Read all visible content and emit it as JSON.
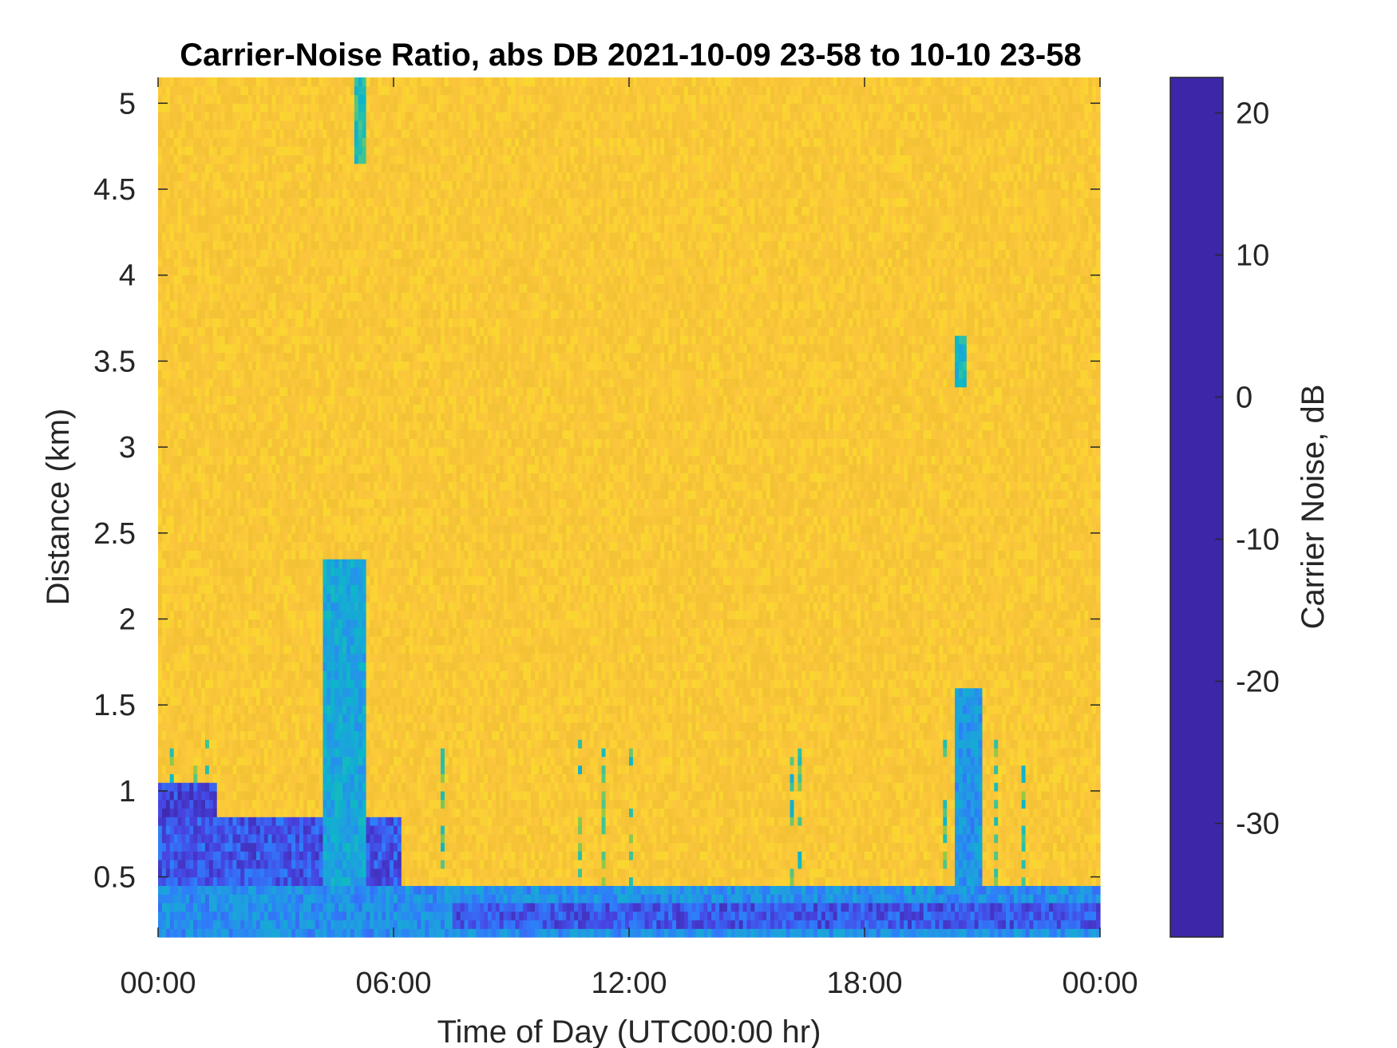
{
  "chart_data": {
    "type": "heatmap",
    "title": "Carrier-Noise Ratio, abs DB 2021-10-09 23-58 to 10-10 23-58",
    "xlabel": "Time of Day (UTC00:00 hr)",
    "ylabel": "Distance (km)",
    "colorbar_label": "Carrier Noise, dB",
    "xlim": [
      0,
      24
    ],
    "ylim": [
      0.15,
      5.15
    ],
    "clim": [
      -38,
      22.5
    ],
    "x_ticks": [
      {
        "value": 0,
        "label": "00:00"
      },
      {
        "value": 6,
        "label": "06:00"
      },
      {
        "value": 12,
        "label": "12:00"
      },
      {
        "value": 18,
        "label": "18:00"
      },
      {
        "value": 24,
        "label": "00:00"
      }
    ],
    "y_ticks": [
      {
        "value": 0.5,
        "label": "0.5"
      },
      {
        "value": 1,
        "label": "1"
      },
      {
        "value": 1.5,
        "label": "1.5"
      },
      {
        "value": 2,
        "label": "2"
      },
      {
        "value": 2.5,
        "label": "2.5"
      },
      {
        "value": 3,
        "label": "3"
      },
      {
        "value": 3.5,
        "label": "3.5"
      },
      {
        "value": 4,
        "label": "4"
      },
      {
        "value": 4.5,
        "label": "4.5"
      },
      {
        "value": 5,
        "label": "5"
      }
    ],
    "colorbar_ticks": [
      {
        "value": 20,
        "label": "20"
      },
      {
        "value": 10,
        "label": "10"
      },
      {
        "value": 0,
        "label": "0"
      },
      {
        "value": -10,
        "label": "-10"
      },
      {
        "value": -20,
        "label": "-20"
      },
      {
        "value": -30,
        "label": "-30"
      }
    ],
    "colormap": "parula",
    "colormap_stops": [
      "#3e26a8",
      "#4745e3",
      "#2f7cfb",
      "#1f9fe0",
      "#0cb7c8",
      "#3ac499",
      "#9bc93f",
      "#e7ba28",
      "#fbc63c",
      "#f9fb15"
    ],
    "background_level_db": -31,
    "features": [
      {
        "name": "surface layer",
        "t_start": 0,
        "t_end": 24,
        "d_min": 0.15,
        "d_max": 0.45,
        "level_db": 5
      },
      {
        "name": "low band",
        "t_start": 7.5,
        "t_end": 24,
        "d_min": 0.2,
        "d_max": 0.35,
        "level_db": 14
      },
      {
        "name": "early layer",
        "t_start": 0,
        "t_end": 6.2,
        "d_min": 0.45,
        "d_max": 0.85,
        "level_db": 14
      },
      {
        "name": "early cap",
        "t_start": 0,
        "t_end": 1.5,
        "d_min": 0.85,
        "d_max": 1.05,
        "level_db": 16
      },
      {
        "name": "plume",
        "t_start": 4.2,
        "t_end": 5.3,
        "d_min": 0.45,
        "d_max": 2.35,
        "level_db": 0
      },
      {
        "name": "plume top",
        "t_start": 5.0,
        "t_end": 5.3,
        "d_min": 4.65,
        "d_max": 5.15,
        "level_db": -8
      },
      {
        "name": "upper cell",
        "t_start": 20.3,
        "t_end": 20.55,
        "d_min": 3.35,
        "d_max": 3.65,
        "level_db": -4
      },
      {
        "name": "late spike",
        "t_start": 20.3,
        "t_end": 21.0,
        "d_min": 0.45,
        "d_max": 1.6,
        "level_db": 4
      }
    ]
  }
}
